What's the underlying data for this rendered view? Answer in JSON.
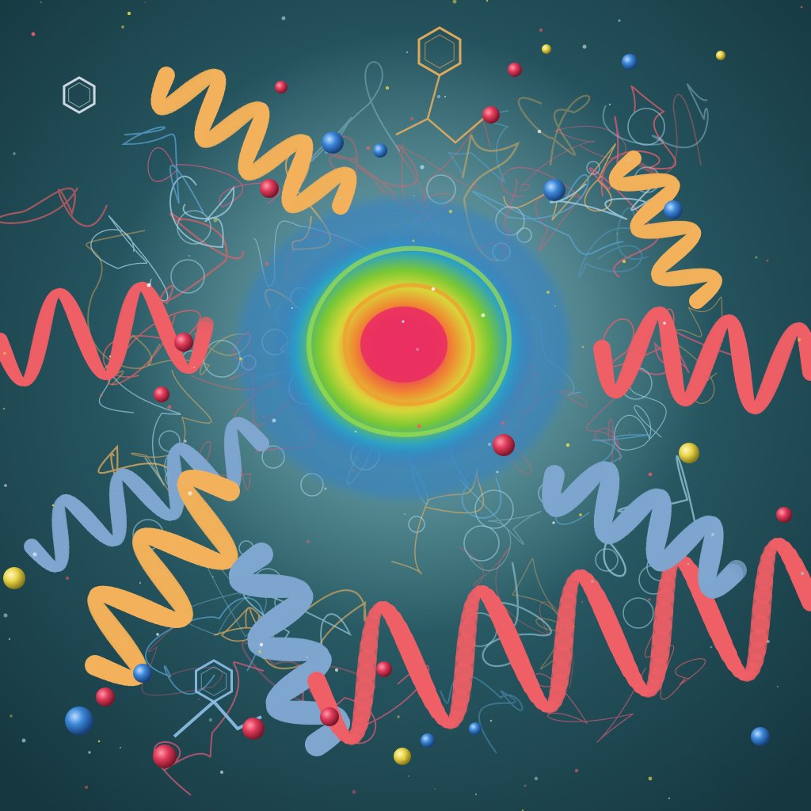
{
  "image": {
    "domain": "Natural-Image",
    "colors": {
      "background": "#1f4f5a",
      "background_center": "#3f7f86",
      "background_edge": "#163740",
      "core_red": "#e8385a",
      "core_green": "#78c832",
      "core_blue": "#2e8fd0",
      "ribbon_coral": "#ef5f66",
      "ribbon_gold": "#f2b15a",
      "ribbon_steel_blue": "#7fa6cf",
      "wire": "#a9d6ea",
      "atom_red": "#e03a5a",
      "atom_blue": "#3b86d8",
      "atom_yellow": "#e8d64a"
    }
  }
}
